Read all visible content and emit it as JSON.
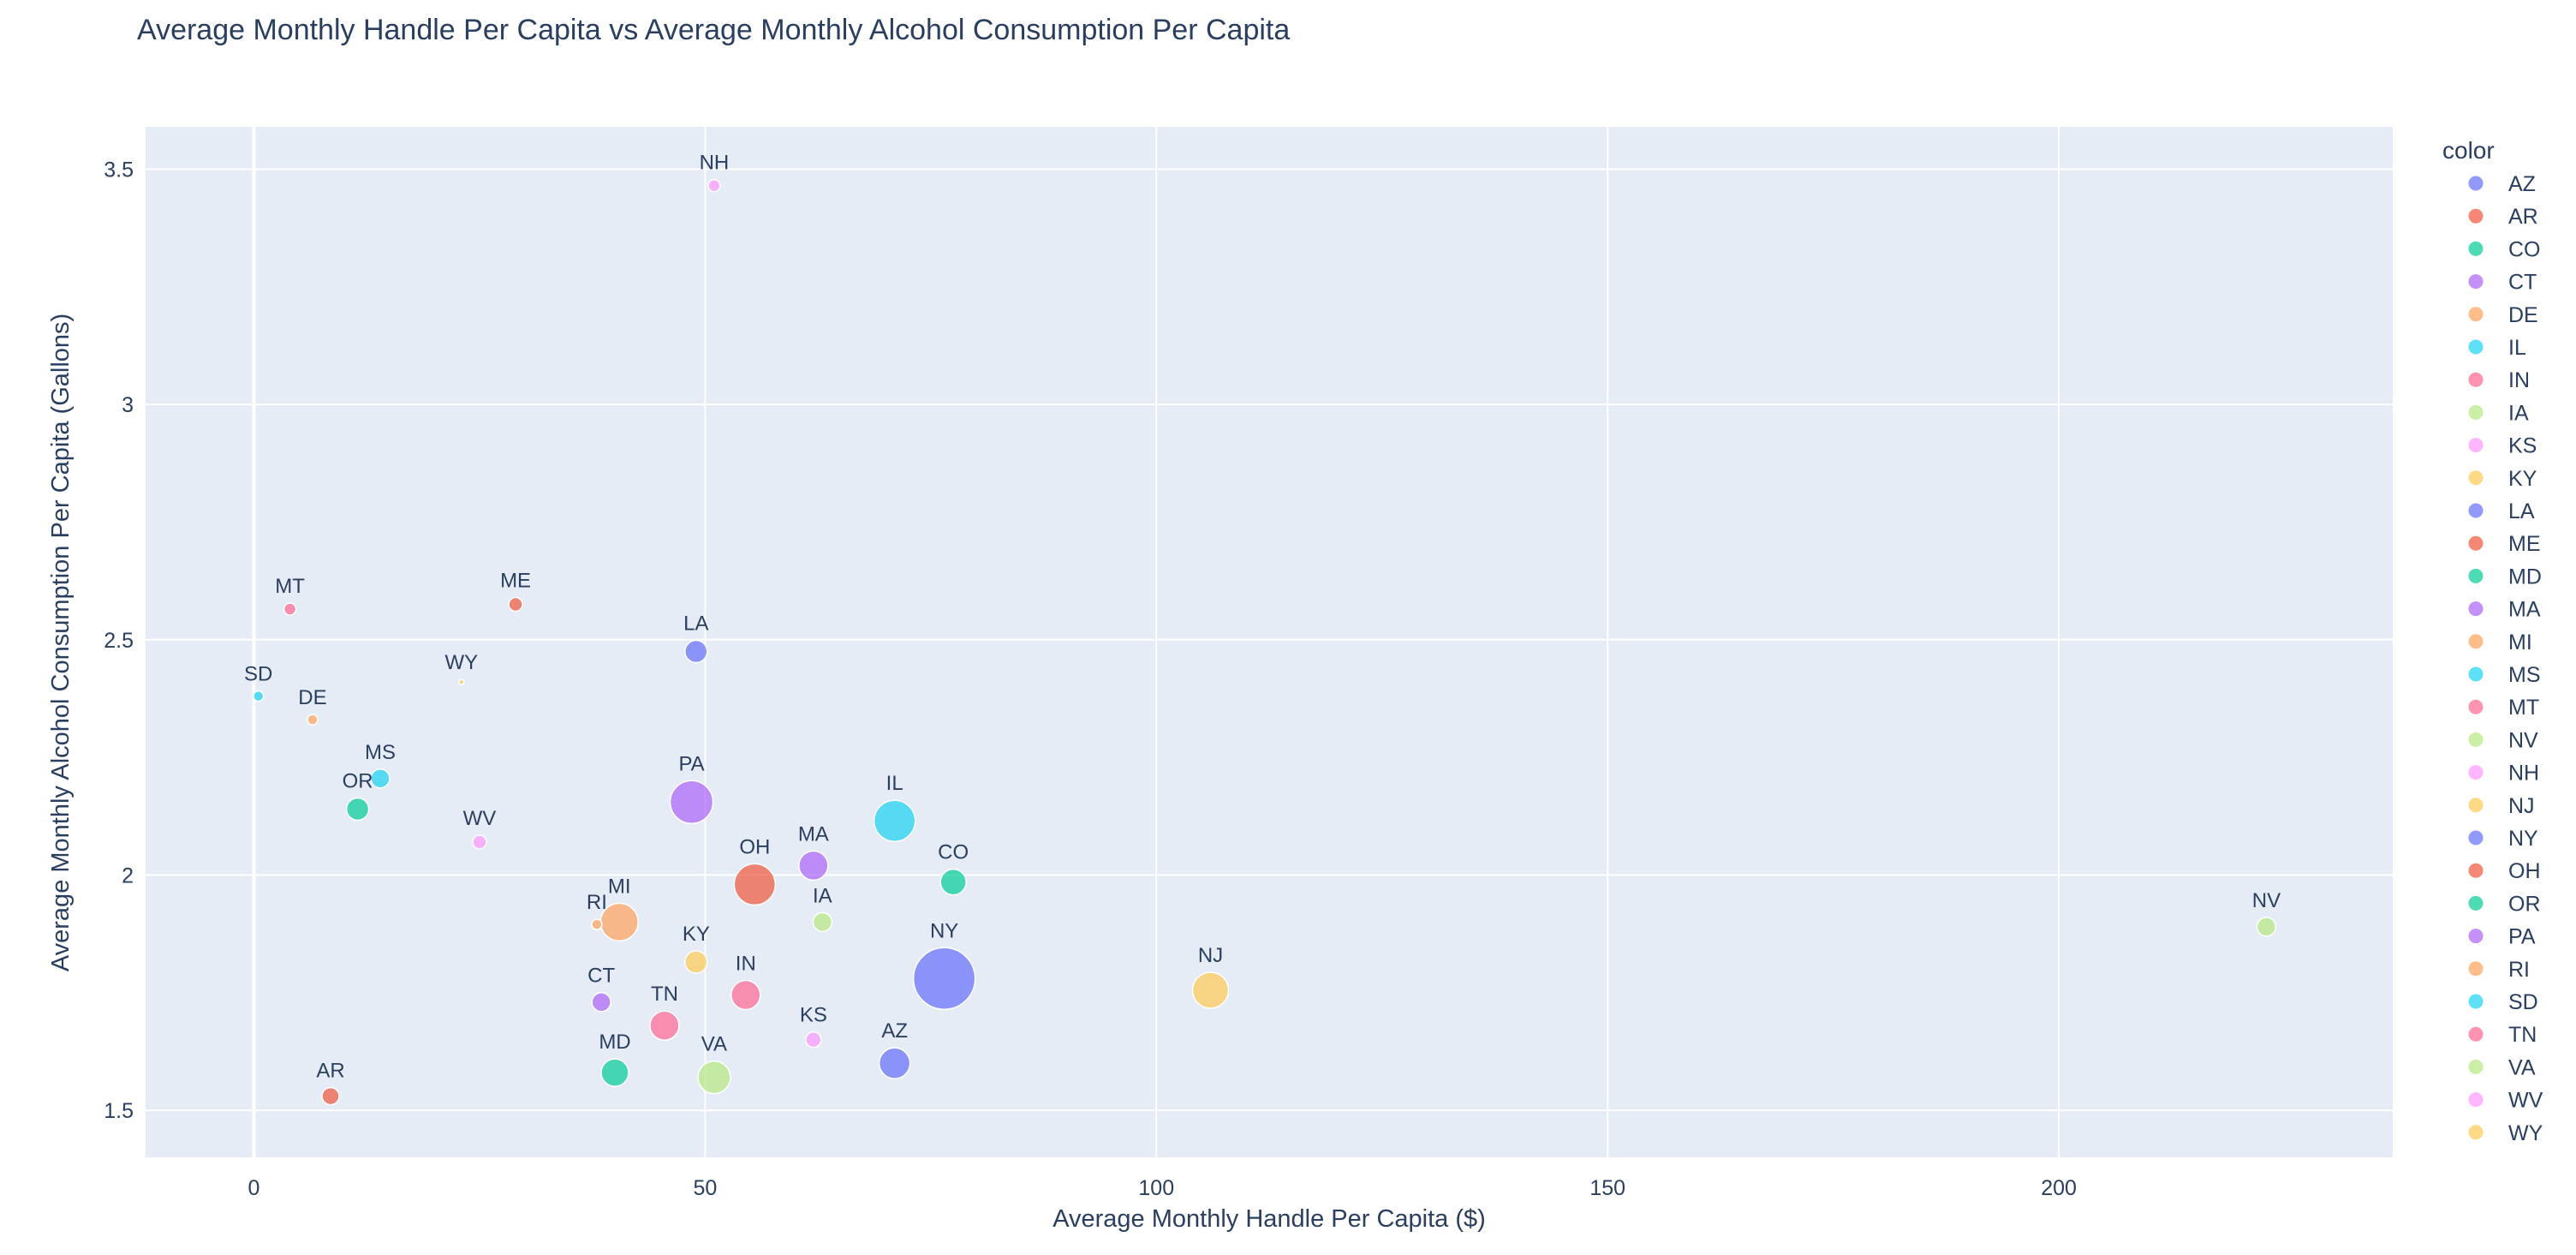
{
  "chart_data": {
    "type": "scatter",
    "title": "Average Monthly Handle Per Capita vs Average Monthly Alcohol Consumption Per Capita",
    "xlabel": "Average Monthly Handle Per Capita ($)",
    "ylabel": "Average Monthly Alcohol Consumption Per Capita (Gallons)",
    "xlim": [
      -12,
      237
    ],
    "ylim": [
      1.4,
      3.59
    ],
    "xticks": [
      0,
      50,
      100,
      150,
      200
    ],
    "yticks": [
      1.5,
      2,
      2.5,
      3,
      3.5
    ],
    "ytick_labels": [
      "1.5",
      "2",
      "2.5",
      "3",
      "3.5"
    ],
    "grid": true,
    "legend": {
      "title": "color",
      "placement": "right",
      "entries": [
        "AZ",
        "AR",
        "CO",
        "CT",
        "DE",
        "IL",
        "IN",
        "IA",
        "KS",
        "KY",
        "LA",
        "ME",
        "MD",
        "MA",
        "MI",
        "MS",
        "MT",
        "NV",
        "NH",
        "NJ",
        "NY",
        "OH",
        "OR",
        "PA",
        "RI",
        "SD",
        "TN",
        "VA",
        "WV",
        "WY"
      ]
    },
    "colors": {
      "AZ": "#636EFA",
      "AR": "#EF553B",
      "CO": "#00CC96",
      "CT": "#AB63FA",
      "DE": "#FFA15A",
      "IL": "#19D3F3",
      "IN": "#FF6692",
      "IA": "#B6E880",
      "KS": "#FF97FF",
      "KY": "#FECB52",
      "LA": "#636EFA",
      "ME": "#EF553B",
      "MD": "#00CC96",
      "MA": "#AB63FA",
      "MI": "#FFA15A",
      "MS": "#19D3F3",
      "MT": "#FF6692",
      "NV": "#B6E880",
      "NH": "#FF97FF",
      "NJ": "#FECB52",
      "NY": "#636EFA",
      "OH": "#EF553B",
      "OR": "#00CC96",
      "PA": "#AB63FA",
      "RI": "#FFA15A",
      "SD": "#19D3F3",
      "TN": "#FF6692",
      "VA": "#B6E880",
      "WV": "#FF97FF",
      "WY": "#FECB52"
    },
    "points": [
      {
        "label": "NH",
        "x": 51,
        "y": 3.465,
        "size": 7
      },
      {
        "label": "MT",
        "x": 4,
        "y": 2.565,
        "size": 7
      },
      {
        "label": "ME",
        "x": 29,
        "y": 2.575,
        "size": 8
      },
      {
        "label": "LA",
        "x": 49,
        "y": 2.475,
        "size": 13
      },
      {
        "label": "WY",
        "x": 23,
        "y": 2.41,
        "size": 3
      },
      {
        "label": "SD",
        "x": 0.5,
        "y": 2.38,
        "size": 6
      },
      {
        "label": "DE",
        "x": 6.5,
        "y": 2.33,
        "size": 6
      },
      {
        "label": "MS",
        "x": 14,
        "y": 2.205,
        "size": 11
      },
      {
        "label": "OR",
        "x": 11.5,
        "y": 2.14,
        "size": 13
      },
      {
        "label": "PA",
        "x": 48.5,
        "y": 2.155,
        "size": 25
      },
      {
        "label": "IL",
        "x": 71,
        "y": 2.115,
        "size": 24
      },
      {
        "label": "WV",
        "x": 25,
        "y": 2.07,
        "size": 8
      },
      {
        "label": "MA",
        "x": 62,
        "y": 2.02,
        "size": 17
      },
      {
        "label": "CO",
        "x": 77.5,
        "y": 1.985,
        "size": 15
      },
      {
        "label": "OH",
        "x": 55.5,
        "y": 1.98,
        "size": 24
      },
      {
        "label": "RI",
        "x": 38,
        "y": 1.895,
        "size": 6
      },
      {
        "label": "MI",
        "x": 40.5,
        "y": 1.9,
        "size": 22
      },
      {
        "label": "IA",
        "x": 63,
        "y": 1.9,
        "size": 11
      },
      {
        "label": "NV",
        "x": 223,
        "y": 1.89,
        "size": 11
      },
      {
        "label": "KY",
        "x": 49,
        "y": 1.815,
        "size": 13
      },
      {
        "label": "NY",
        "x": 76.5,
        "y": 1.78,
        "size": 36
      },
      {
        "label": "NJ",
        "x": 106,
        "y": 1.755,
        "size": 21
      },
      {
        "label": "IN",
        "x": 54.5,
        "y": 1.745,
        "size": 17
      },
      {
        "label": "CT",
        "x": 38.5,
        "y": 1.73,
        "size": 11
      },
      {
        "label": "TN",
        "x": 45.5,
        "y": 1.68,
        "size": 17
      },
      {
        "label": "KS",
        "x": 62,
        "y": 1.65,
        "size": 9
      },
      {
        "label": "AZ",
        "x": 71,
        "y": 1.6,
        "size": 18
      },
      {
        "label": "MD",
        "x": 40,
        "y": 1.58,
        "size": 16
      },
      {
        "label": "VA",
        "x": 51,
        "y": 1.57,
        "size": 19
      },
      {
        "label": "AR",
        "x": 8.5,
        "y": 1.53,
        "size": 10
      }
    ]
  }
}
